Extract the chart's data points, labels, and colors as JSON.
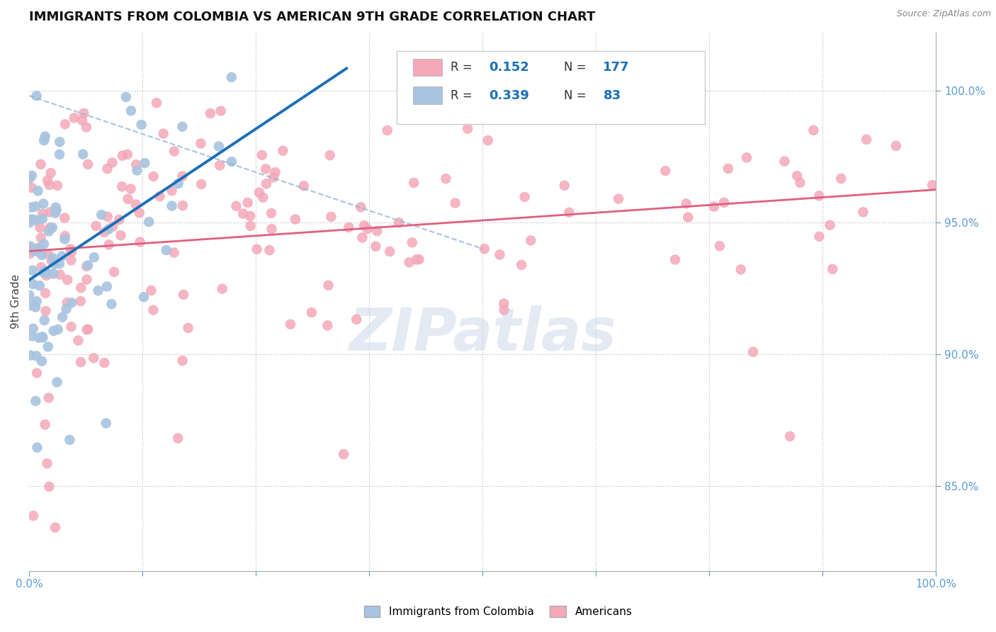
{
  "title": "IMMIGRANTS FROM COLOMBIA VS AMERICAN 9TH GRADE CORRELATION CHART",
  "source": "Source: ZipAtlas.com",
  "ylabel": "9th Grade",
  "right_yticks": [
    100.0,
    95.0,
    90.0,
    85.0
  ],
  "blue_R": 0.339,
  "blue_N": 83,
  "pink_R": 0.152,
  "pink_N": 177,
  "blue_color": "#a8c4e0",
  "pink_color": "#f4a8b8",
  "blue_line_color": "#1a6fba",
  "pink_line_color": "#e06080",
  "dash_color": "#8ab0d8",
  "watermark_color": "#cdd9ea",
  "watermark_text": "ZIPatlas",
  "legend_label_blue": "Immigrants from Colombia",
  "legend_label_pink": "Americans",
  "figsize": [
    14.06,
    8.92
  ],
  "dpi": 100,
  "ylim_low": 0.818,
  "ylim_high": 1.022,
  "xlim_low": 0.0,
  "xlim_high": 1.0
}
